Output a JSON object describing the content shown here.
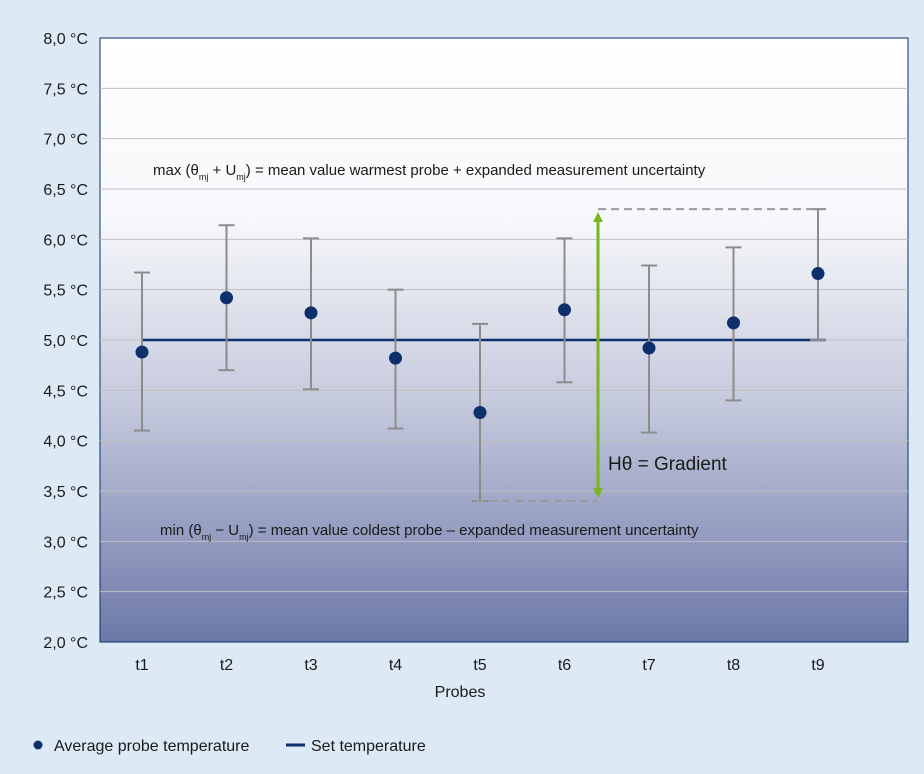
{
  "chart_data": {
    "type": "scatter",
    "title": "",
    "xlabel": "Probes",
    "ylabel": "",
    "categories": [
      "t1",
      "t2",
      "t3",
      "t4",
      "t5",
      "t6",
      "t7",
      "t8",
      "t9"
    ],
    "ylim": [
      2.0,
      8.0
    ],
    "yticks": [
      2.0,
      2.5,
      3.0,
      3.5,
      4.0,
      4.5,
      5.0,
      5.5,
      6.0,
      6.5,
      7.0,
      7.5,
      8.0
    ],
    "ytick_labels": [
      "2,0 °C",
      "2,5 °C",
      "3,0 °C",
      "3,5 °C",
      "4,0 °C",
      "4,5 °C",
      "5,0 °C",
      "5,5 °C",
      "6,0 °C",
      "6,5 °C",
      "7,0 °C",
      "7,5 °C",
      "8,0 °C"
    ],
    "grid": true,
    "series": [
      {
        "name": "Average probe temperature",
        "values": [
          4.88,
          5.42,
          5.27,
          4.82,
          4.28,
          5.3,
          4.92,
          5.17,
          5.66
        ],
        "error_low": [
          4.1,
          4.7,
          4.51,
          4.12,
          3.4,
          4.58,
          4.08,
          4.4,
          5.0
        ],
        "error_high": [
          5.67,
          6.14,
          6.01,
          5.5,
          5.16,
          6.01,
          5.74,
          5.92,
          6.3
        ],
        "color": "#0d2f6b"
      },
      {
        "name": "Set temperature",
        "value": 5.0,
        "color": "#0d2f6b"
      }
    ],
    "annotations": {
      "max_text_prefix": "max (θ",
      "max_sub1": "mj",
      "max_mid": " + U",
      "max_sub2": "mj",
      "max_text_suffix": ") =  mean value warmest probe + expanded measurement uncertainty",
      "min_text_prefix": "min (θ",
      "min_sub1": "mj",
      "min_mid": " − U",
      "min_sub2": "mj",
      "min_text_suffix": ") =  mean value coldest probe – expanded measurement uncertainty",
      "gradient_label": "Hθ = Gradient",
      "gradient_top": 6.3,
      "gradient_bottom": 3.4,
      "gradient_color": "#7ab51d"
    },
    "legend_position": "bottom-left",
    "error_bar_color": "#8c8c8c",
    "grid_color": "#bfbfbf"
  }
}
